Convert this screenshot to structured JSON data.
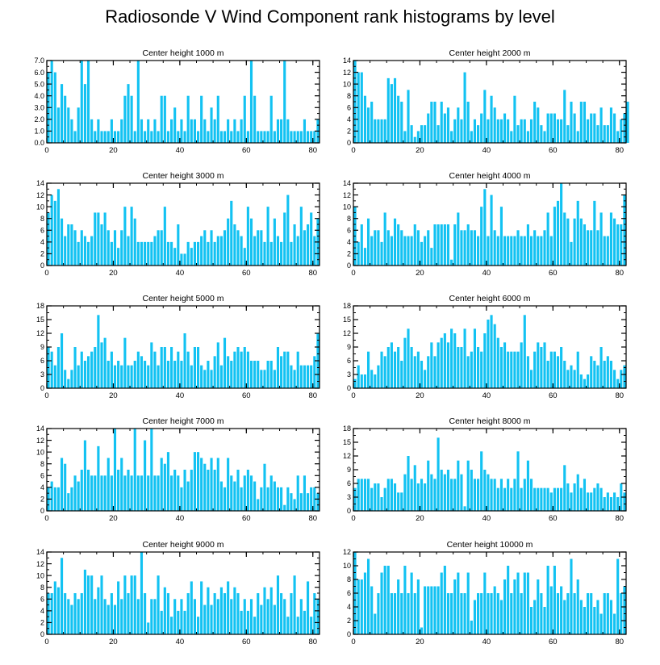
{
  "title": "Radiosonde V Wind Component rank histograms by level",
  "colors": {
    "bar": "#12c2f2",
    "axis": "#000000",
    "background": "#ffffff"
  },
  "chart_data": [
    {
      "type": "bar",
      "title": "Center height 1000 m",
      "xlim": [
        0,
        82
      ],
      "ylim": [
        0,
        7
      ],
      "xticks": [
        0,
        20,
        40,
        60,
        80
      ],
      "yticks": [
        0,
        1,
        2,
        3,
        4,
        5,
        6,
        7
      ],
      "ytick_labels": [
        "0.0",
        "1.0",
        "2.0",
        "3.0",
        "4.0",
        "5.0",
        "6.0",
        "7.0"
      ],
      "values": [
        6,
        7,
        6,
        3,
        5,
        4,
        3,
        2,
        1,
        3,
        7,
        5,
        7,
        2,
        1,
        2,
        1,
        1,
        1,
        2,
        1,
        1,
        2,
        4,
        5,
        4,
        1,
        7,
        2,
        1,
        2,
        1,
        2,
        1,
        4,
        4,
        1,
        2,
        3,
        1,
        2,
        1,
        4,
        2,
        2,
        1,
        4,
        2,
        1,
        3,
        2,
        4,
        1,
        1,
        2,
        1,
        2,
        1,
        2,
        4,
        1,
        7,
        4,
        1,
        1,
        1,
        1,
        4,
        1,
        2,
        2,
        7,
        2,
        1,
        1,
        1,
        1,
        2,
        1,
        1,
        1,
        2
      ]
    },
    {
      "type": "bar",
      "title": "Center height 2000 m",
      "xlim": [
        0,
        82
      ],
      "ylim": [
        0,
        14
      ],
      "xticks": [
        0,
        20,
        40,
        60,
        80
      ],
      "yticks": [
        0,
        2,
        4,
        6,
        8,
        10,
        12,
        14
      ],
      "ytick_labels": [
        "0",
        "2",
        "4",
        "6",
        "8",
        "10",
        "12",
        "14"
      ],
      "values": [
        14,
        12,
        12,
        8,
        6,
        7,
        4,
        4,
        4,
        4,
        11,
        10,
        11,
        8,
        7,
        2,
        9,
        3,
        1,
        2,
        3,
        3,
        5,
        7,
        7,
        3,
        7,
        5,
        6,
        2,
        4,
        6,
        4,
        12,
        7,
        2,
        4,
        3,
        5,
        9,
        4,
        8,
        6,
        4,
        4,
        5,
        4,
        2,
        8,
        3,
        4,
        4,
        2,
        4,
        7,
        6,
        3,
        2,
        5,
        5,
        5,
        4,
        4,
        9,
        3,
        7,
        5,
        2,
        7,
        7,
        4,
        5,
        5,
        3,
        6,
        3,
        3,
        6,
        5,
        2,
        4,
        5,
        7
      ]
    },
    {
      "type": "bar",
      "title": "Center height 3000 m",
      "xlim": [
        0,
        82
      ],
      "ylim": [
        0,
        14
      ],
      "xticks": [
        0,
        20,
        40,
        60,
        80
      ],
      "yticks": [
        0,
        2,
        4,
        6,
        8,
        10,
        12,
        14
      ],
      "ytick_labels": [
        "0",
        "2",
        "4",
        "6",
        "8",
        "10",
        "12",
        "14"
      ],
      "values": [
        9,
        12,
        11,
        13,
        8,
        5,
        7,
        7,
        6,
        4,
        6,
        5,
        4,
        5,
        9,
        9,
        7,
        9,
        6,
        4,
        6,
        3,
        6,
        10,
        5,
        10,
        8,
        4,
        4,
        4,
        4,
        4,
        5,
        6,
        6,
        10,
        4,
        4,
        3,
        7,
        2,
        2,
        4,
        3,
        4,
        4,
        5,
        6,
        4,
        6,
        4,
        5,
        5,
        6,
        8,
        11,
        7,
        6,
        5,
        3,
        10,
        8,
        5,
        6,
        6,
        4,
        10,
        4,
        8,
        5,
        4,
        9,
        12,
        4,
        7,
        5,
        10,
        6,
        7,
        9,
        5,
        8
      ]
    },
    {
      "type": "bar",
      "title": "Center height 4000 m",
      "xlim": [
        0,
        82
      ],
      "ylim": [
        0,
        14
      ],
      "xticks": [
        0,
        20,
        40,
        60,
        80
      ],
      "yticks": [
        0,
        2,
        4,
        6,
        8,
        10,
        12,
        14
      ],
      "ytick_labels": [
        "0",
        "2",
        "4",
        "6",
        "8",
        "10",
        "12",
        "14"
      ],
      "values": [
        10,
        4,
        7,
        3,
        8,
        5,
        6,
        6,
        4,
        9,
        6,
        5,
        8,
        7,
        6,
        5,
        5,
        5,
        7,
        6,
        4,
        5,
        6,
        3,
        7,
        7,
        7,
        7,
        7,
        1,
        7,
        9,
        6,
        6,
        7,
        6,
        6,
        5,
        10,
        13,
        5,
        12,
        6,
        5,
        10,
        5,
        5,
        5,
        5,
        6,
        5,
        5,
        7,
        5,
        6,
        5,
        5,
        6,
        9,
        5,
        10,
        11,
        14,
        9,
        8,
        4,
        8,
        11,
        8,
        7,
        6,
        6,
        11,
        6,
        9,
        5,
        5,
        9,
        8,
        7,
        7,
        12
      ]
    },
    {
      "type": "bar",
      "title": "Center height 5000 m",
      "xlim": [
        0,
        82
      ],
      "ylim": [
        0,
        18
      ],
      "xticks": [
        0,
        20,
        40,
        60,
        80
      ],
      "yticks": [
        0,
        3,
        6,
        9,
        12,
        15,
        18
      ],
      "ytick_labels": [
        "0",
        "3",
        "6",
        "9",
        "12",
        "15",
        "18"
      ],
      "values": [
        9,
        8,
        5,
        9,
        12,
        4,
        2,
        4,
        9,
        5,
        8,
        6,
        7,
        8,
        9,
        16,
        10,
        11,
        6,
        8,
        5,
        6,
        5,
        11,
        5,
        5,
        6,
        8,
        7,
        6,
        5,
        10,
        8,
        5,
        9,
        9,
        6,
        9,
        6,
        8,
        6,
        12,
        8,
        5,
        9,
        9,
        5,
        4,
        6,
        4,
        7,
        10,
        5,
        11,
        7,
        6,
        8,
        9,
        8,
        9,
        8,
        6,
        6,
        6,
        4,
        4,
        6,
        6,
        4,
        9,
        7,
        8,
        8,
        5,
        4,
        8,
        5,
        5,
        5,
        5,
        7,
        12
      ]
    },
    {
      "type": "bar",
      "title": "Center height 6000 m",
      "xlim": [
        0,
        82
      ],
      "ylim": [
        0,
        18
      ],
      "xticks": [
        0,
        20,
        40,
        60,
        80
      ],
      "yticks": [
        0,
        3,
        6,
        9,
        12,
        15,
        18
      ],
      "ytick_labels": [
        "0",
        "3",
        "6",
        "9",
        "12",
        "15",
        "18"
      ],
      "values": [
        2,
        5,
        3,
        3,
        8,
        4,
        3,
        5,
        8,
        7,
        9,
        10,
        8,
        9,
        6,
        11,
        13,
        9,
        7,
        8,
        6,
        4,
        7,
        10,
        7,
        10,
        11,
        12,
        10,
        13,
        12,
        9,
        9,
        13,
        7,
        8,
        13,
        9,
        8,
        12,
        15,
        16,
        14,
        11,
        9,
        10,
        8,
        8,
        8,
        8,
        10,
        16,
        7,
        4,
        8,
        10,
        9,
        10,
        6,
        8,
        8,
        7,
        9,
        6,
        4,
        5,
        4,
        8,
        3,
        2,
        3,
        7,
        6,
        5,
        9,
        6,
        7,
        6,
        4,
        2,
        4,
        5
      ]
    },
    {
      "type": "bar",
      "title": "Center height 7000 m",
      "xlim": [
        0,
        82
      ],
      "ylim": [
        0,
        14
      ],
      "xticks": [
        0,
        20,
        40,
        60,
        80
      ],
      "yticks": [
        0,
        2,
        4,
        6,
        8,
        10,
        12,
        14
      ],
      "ytick_labels": [
        "0",
        "2",
        "4",
        "6",
        "8",
        "10",
        "12",
        "14"
      ],
      "values": [
        4,
        5,
        4,
        4,
        9,
        8,
        3,
        4,
        6,
        5,
        7,
        12,
        7,
        6,
        6,
        11,
        6,
        6,
        9,
        6,
        14,
        7,
        9,
        6,
        7,
        6,
        14,
        6,
        6,
        12,
        6,
        14,
        6,
        6,
        9,
        8,
        10,
        6,
        7,
        6,
        4,
        7,
        5,
        7,
        10,
        10,
        9,
        8,
        7,
        9,
        7,
        9,
        5,
        4,
        9,
        6,
        5,
        7,
        4,
        6,
        7,
        6,
        5,
        2,
        4,
        8,
        4,
        6,
        5,
        4,
        4,
        1,
        4,
        3,
        2,
        6,
        3,
        6,
        3,
        4,
        4,
        3
      ]
    },
    {
      "type": "bar",
      "title": "Center height 8000 m",
      "xlim": [
        0,
        82
      ],
      "ylim": [
        0,
        18
      ],
      "xticks": [
        0,
        20,
        40,
        60,
        80
      ],
      "yticks": [
        0,
        3,
        6,
        9,
        12,
        15,
        18
      ],
      "ytick_labels": [
        "0",
        "3",
        "6",
        "9",
        "12",
        "15",
        "18"
      ],
      "values": [
        5,
        7,
        7,
        7,
        7,
        5,
        6,
        6,
        3,
        5,
        7,
        7,
        6,
        4,
        4,
        8,
        12,
        7,
        10,
        6,
        7,
        6,
        11,
        8,
        7,
        16,
        9,
        8,
        9,
        7,
        7,
        11,
        8,
        1,
        11,
        9,
        7,
        7,
        13,
        9,
        8,
        7,
        7,
        5,
        7,
        5,
        7,
        5,
        7,
        13,
        5,
        7,
        11,
        7,
        5,
        5,
        5,
        5,
        5,
        4,
        5,
        5,
        5,
        10,
        6,
        4,
        6,
        8,
        5,
        7,
        4,
        4,
        5,
        6,
        5,
        3,
        4,
        3,
        4,
        3,
        6,
        4
      ]
    },
    {
      "type": "bar",
      "title": "Center height 9000 m",
      "xlim": [
        0,
        82
      ],
      "ylim": [
        0,
        14
      ],
      "xticks": [
        0,
        20,
        40,
        60,
        80
      ],
      "yticks": [
        0,
        2,
        4,
        6,
        8,
        10,
        12,
        14
      ],
      "ytick_labels": [
        "0",
        "2",
        "4",
        "6",
        "8",
        "10",
        "12",
        "14"
      ],
      "values": [
        7,
        7,
        9,
        8,
        13,
        7,
        6,
        5,
        7,
        6,
        7,
        11,
        10,
        10,
        6,
        8,
        10,
        6,
        5,
        7,
        5,
        9,
        6,
        10,
        7,
        10,
        10,
        6,
        14,
        7,
        2,
        6,
        6,
        10,
        4,
        8,
        7,
        3,
        6,
        4,
        6,
        4,
        7,
        9,
        6,
        3,
        9,
        5,
        8,
        5,
        7,
        6,
        8,
        7,
        9,
        6,
        8,
        7,
        4,
        6,
        4,
        6,
        3,
        7,
        5,
        8,
        6,
        8,
        5,
        10,
        7,
        6,
        3,
        7,
        10,
        3,
        6,
        4,
        9,
        3,
        7,
        6
      ]
    },
    {
      "type": "bar",
      "title": "Center height 10000 m",
      "xlim": [
        0,
        82
      ],
      "ylim": [
        0,
        12
      ],
      "xticks": [
        0,
        20,
        40,
        60,
        80
      ],
      "yticks": [
        0,
        2,
        4,
        6,
        8,
        10,
        12
      ],
      "ytick_labels": [
        "0",
        "2",
        "4",
        "6",
        "8",
        "10",
        "12"
      ],
      "values": [
        12,
        8,
        8,
        9,
        11,
        7,
        3,
        6,
        9,
        10,
        10,
        6,
        6,
        8,
        6,
        10,
        6,
        9,
        6,
        8,
        1,
        7,
        7,
        7,
        7,
        7,
        9,
        10,
        6,
        6,
        8,
        9,
        6,
        6,
        9,
        2,
        5,
        6,
        6,
        9,
        6,
        6,
        7,
        6,
        5,
        8,
        10,
        6,
        8,
        9,
        6,
        9,
        9,
        4,
        5,
        8,
        6,
        4,
        10,
        7,
        10,
        6,
        7,
        5,
        6,
        11,
        6,
        8,
        5,
        4,
        6,
        6,
        4,
        5,
        3,
        6,
        6,
        5,
        3,
        11,
        6,
        7
      ]
    }
  ]
}
